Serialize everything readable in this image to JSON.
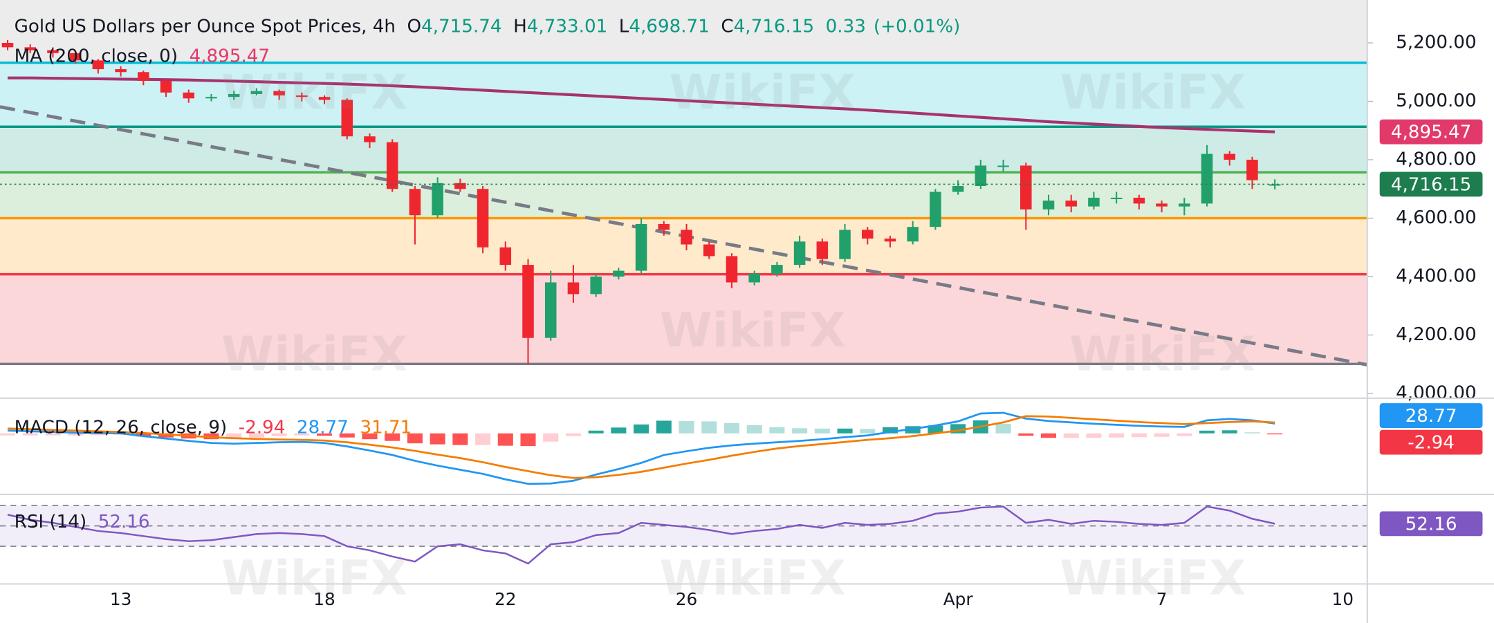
{
  "watermark": "WikiFX",
  "chart_data": [
    {
      "type": "candlestick",
      "title": "Gold US Dollars per Ounce Spot Prices, 4h",
      "header": {
        "ohlc": [
          {
            "key": "O",
            "value": "4,715.74"
          },
          {
            "key": "H",
            "value": "4,733.01"
          },
          {
            "key": "L",
            "value": "4,698.71"
          },
          {
            "key": "C",
            "value": "4,716.15"
          }
        ],
        "change": "0.33",
        "change_pct": "(+0.01%)",
        "color": "#089981"
      },
      "categories": [
        null,
        null,
        null,
        null,
        null,
        "13",
        null,
        null,
        null,
        null,
        null,
        null,
        null,
        null,
        "18",
        null,
        null,
        null,
        null,
        null,
        null,
        null,
        "22",
        null,
        null,
        null,
        null,
        null,
        null,
        null,
        "26",
        null,
        null,
        null,
        null,
        null,
        null,
        null,
        null,
        null,
        null,
        null,
        "Apr",
        null,
        null,
        null,
        null,
        null,
        null,
        null,
        null,
        "7",
        null,
        null,
        null,
        null,
        null,
        null,
        null,
        "10"
      ],
      "open": [
        5200,
        5185,
        5175,
        5165,
        5140,
        5110,
        5100,
        5070,
        5030,
        5010,
        5015,
        5025,
        5035,
        5020,
        5015,
        5005,
        4880,
        4860,
        4700,
        4610,
        4720,
        4700,
        4500,
        4440,
        4190,
        4380,
        4340,
        4400,
        4420,
        4580,
        4560,
        4510,
        4470,
        4380,
        4410,
        4440,
        4520,
        4460,
        4560,
        4530,
        4520,
        4570,
        4690,
        4710,
        4780,
        4780,
        4630,
        4660,
        4640,
        4670,
        4670,
        4650,
        4640,
        4650,
        4820,
        4800,
        4715.74,
        null,
        null,
        null
      ],
      "high": [
        5210,
        5195,
        5185,
        5170,
        5145,
        5120,
        5105,
        5075,
        5040,
        5025,
        5035,
        5045,
        5040,
        5030,
        5020,
        5010,
        4890,
        4870,
        4710,
        4740,
        4735,
        4710,
        4520,
        4460,
        4420,
        4440,
        4410,
        4430,
        4600,
        4590,
        4580,
        4520,
        4480,
        4420,
        4450,
        4540,
        4530,
        4580,
        4570,
        4540,
        4590,
        4700,
        4730,
        4800,
        4800,
        4790,
        4680,
        4680,
        4690,
        4690,
        4680,
        4660,
        4670,
        4850,
        4830,
        4810,
        4733.01,
        null,
        null,
        null
      ],
      "low": [
        5175,
        5165,
        5150,
        5130,
        5095,
        5085,
        5055,
        5015,
        4995,
        5000,
        5005,
        5020,
        5005,
        5000,
        4990,
        4870,
        4840,
        4690,
        4510,
        4600,
        4690,
        4480,
        4420,
        4100,
        4180,
        4310,
        4330,
        4390,
        4410,
        4540,
        4490,
        4460,
        4360,
        4370,
        4400,
        4430,
        4440,
        4450,
        4510,
        4500,
        4510,
        4560,
        4680,
        4700,
        4760,
        4560,
        4610,
        4620,
        4630,
        4650,
        4630,
        4620,
        4610,
        4640,
        4780,
        4700,
        4698.71,
        null,
        null,
        null
      ],
      "close": [
        5185,
        5175,
        5165,
        5140,
        5110,
        5100,
        5070,
        5030,
        5010,
        5015,
        5025,
        5035,
        5020,
        5015,
        5005,
        4880,
        4860,
        4700,
        4610,
        4720,
        4700,
        4500,
        4440,
        4190,
        4380,
        4340,
        4400,
        4420,
        4580,
        4560,
        4510,
        4470,
        4380,
        4410,
        4440,
        4520,
        4460,
        4560,
        4530,
        4520,
        4570,
        4690,
        4710,
        4780,
        4780,
        4630,
        4660,
        4640,
        4670,
        4670,
        4650,
        4640,
        4650,
        4820,
        4800,
        4730,
        4716.15,
        null,
        null,
        null
      ],
      "up_color": "#22a06b",
      "down_color": "#f0262f",
      "series": [
        {
          "name": "MA (200, close, 0)",
          "color": "#a8326e",
          "last_label": "4,895.47",
          "values": [
            5080,
            5080,
            5079,
            5078,
            5077,
            5076,
            5075,
            5074,
            5073,
            5071,
            5069,
            5067,
            5065,
            5063,
            5061,
            5059,
            5056,
            5053,
            5050,
            5046,
            5042,
            5038,
            5034,
            5030,
            5026,
            5022,
            5018,
            5014,
            5010,
            5006,
            5002,
            4998,
            4994,
            4990,
            4986,
            4982,
            4978,
            4974,
            4970,
            4965,
            4960,
            4955,
            4950,
            4945,
            4940,
            4935,
            4930,
            4926,
            4922,
            4918,
            4914,
            4910,
            4907,
            4904,
            4901,
            4898,
            4895.47,
            null,
            null,
            null
          ]
        }
      ],
      "levels": [
        {
          "value": 5132,
          "color": "#00bcd4"
        },
        {
          "value": 4913,
          "color": "#089981"
        },
        {
          "value": 4757,
          "color": "#4caf50"
        },
        {
          "value": 4600,
          "color": "#ff9800"
        },
        {
          "value": 4408,
          "color": "#f23645"
        },
        {
          "value": 4101,
          "color": "#787b86"
        }
      ],
      "trendline": {
        "values": [
          4981,
          4098
        ],
        "color": "#787b86"
      },
      "badge_colors": {
        "ma": "#e2396b",
        "close": "#1e7d4f"
      },
      "ylim": [
        3993.5,
        5346.7
      ],
      "yticks": [
        {
          "value": 4000,
          "label": "4,000.00"
        },
        {
          "value": 4200,
          "label": "4,200.00"
        },
        {
          "value": 4400,
          "label": "4,400.00"
        },
        {
          "value": 4600,
          "label": "4,600.00"
        },
        {
          "value": 4800,
          "label": "4,800.00"
        },
        {
          "value": 5000,
          "label": "5,000.00"
        },
        {
          "value": 5200,
          "label": "5,200.00"
        }
      ]
    },
    {
      "type": "macd",
      "title": "MACD (12, 26, close, 9)",
      "series": [
        {
          "color": "#2196f3",
          "values": [
            8,
            6,
            4,
            2,
            1,
            0,
            -8,
            -15,
            -22,
            -28,
            -30,
            -28,
            -26,
            -25,
            -28,
            -38,
            -50,
            -63,
            -80,
            -94,
            -106,
            -118,
            -134,
            -147,
            -146,
            -138,
            -120,
            -104,
            -86,
            -63,
            -52,
            -42,
            -35,
            -30,
            -26,
            -22,
            -17,
            -11,
            -6,
            4,
            13,
            23,
            35,
            58,
            60,
            43,
            36,
            32,
            28,
            25,
            22,
            20,
            19,
            38,
            42,
            38,
            28.77,
            null,
            null,
            null
          ]
        },
        {
          "color": "#f57c00",
          "values": [
            14,
            12,
            10,
            8,
            6,
            4,
            1,
            -3,
            -7,
            -11,
            -14,
            -16,
            -18,
            -19,
            -21,
            -26,
            -33,
            -41,
            -51,
            -62,
            -72,
            -84,
            -98,
            -110,
            -122,
            -130,
            -128,
            -121,
            -112,
            -100,
            -88,
            -77,
            -65,
            -54,
            -44,
            -37,
            -31,
            -25,
            -19,
            -14,
            -8,
            0,
            8,
            20,
            32,
            50,
            49,
            45,
            41,
            37,
            33,
            30,
            27,
            30,
            33,
            35,
            31.71,
            null,
            null,
            null
          ]
        },
        {
          "colors": [
            "#26a69a",
            "#b2dfdb",
            "#ffcdd2",
            "#ff5252"
          ],
          "values": [
            -6,
            -6,
            -6,
            -6,
            -5,
            -4,
            -9,
            -12,
            -15,
            -17,
            -16,
            -12,
            -8,
            -6,
            -7,
            -12,
            -17,
            -22,
            -29,
            -32,
            -34,
            -34,
            -36,
            -37,
            -24,
            -8,
            8,
            17,
            26,
            37,
            36,
            35,
            30,
            24,
            18,
            15,
            14,
            14,
            13,
            18,
            21,
            23,
            27,
            38,
            28,
            -7,
            -13,
            -13,
            -13,
            -12,
            -11,
            -10,
            -8,
            8,
            9,
            3,
            -2.94,
            null,
            null,
            null
          ]
        }
      ],
      "badge_colors": [
        "#2196f3",
        "#f57c00",
        "#f23645"
      ],
      "ylim": [
        -175,
        97
      ]
    },
    {
      "type": "rsi",
      "title": "RSI (14)",
      "series": [
        {
          "color": "#7e57c2",
          "values": [
            61,
            56,
            53,
            49,
            45,
            43,
            40,
            37,
            35,
            36,
            39,
            42,
            43,
            42,
            40,
            30,
            26,
            20,
            15,
            30,
            32,
            26,
            23,
            13,
            32,
            34,
            41,
            43,
            53,
            51,
            49,
            46,
            42,
            45,
            47,
            51,
            48,
            53,
            51,
            52,
            55,
            62,
            64,
            68,
            69,
            53,
            56,
            52,
            55,
            54,
            52,
            51,
            53,
            69,
            65,
            57,
            52.16,
            null,
            null,
            null
          ]
        }
      ],
      "band_color": "#7e57c2",
      "ylim": [
        -6,
        80
      ],
      "yticks": [
        70,
        50,
        30
      ]
    }
  ]
}
